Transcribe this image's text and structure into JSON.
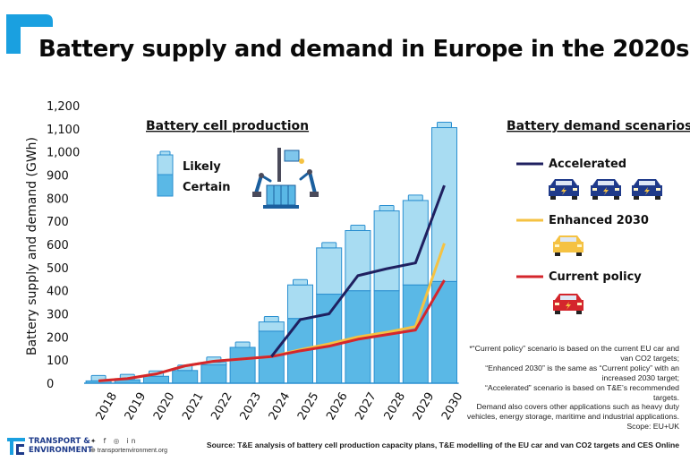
{
  "title": "Battery supply and demand in Europe in the 2020s",
  "source": "Source: T&E analysis of battery cell production capacity plans, T&E modelling of the EU car and van CO2 targets and CES Online",
  "footnote": "*“Current policy” scenario is based on the current EU car and van CO2 targets;\n“Enhanced 2030” is the same as “Current policy” with an increased 2030 target;\n“Accelerated” scenario is based on T&E’s recommended targets.\nDemand also covers other applications such as heavy duty vehicles, energy storage, maritime and industrial applications. Scope: EU+UK",
  "logo": {
    "line1": "TRANSPORT &",
    "line2": "ENVIRONMENT",
    "social": "✦ f ◎ in",
    "website": "⊕ transportenvironment.org"
  },
  "colors": {
    "likely": "#a8dcf2",
    "certain": "#5ab8e6",
    "bar_stroke": "#2a8fd0",
    "accelerated": "#1f2060",
    "enhanced": "#f5c242",
    "current": "#d4262c",
    "brand": "#1aa0e0"
  },
  "chart_data": {
    "type": "bar",
    "title": "",
    "xlabel": "",
    "ylabel": "Battery supply and demand (GWh)",
    "ylim": [
      0,
      1200
    ],
    "yticks": [
      "0",
      "100",
      "200",
      "300",
      "400",
      "500",
      "600",
      "700",
      "800",
      "900",
      "1,000",
      "1,100",
      "1,200"
    ],
    "categories": [
      "2018",
      "2019",
      "2020",
      "2021",
      "2022",
      "2023",
      "2024",
      "2025",
      "2026",
      "2027",
      "2028",
      "2029",
      "2030"
    ],
    "supply_heading": "Battery cell production",
    "demand_heading": "Battery demand scenarios*",
    "supply_series": [
      {
        "name": "Certain",
        "values": [
          10,
          15,
          30,
          55,
          80,
          155,
          225,
          280,
          385,
          400,
          400,
          425,
          440
        ]
      },
      {
        "name": "Likely",
        "values": [
          0,
          0,
          0,
          0,
          10,
          0,
          40,
          145,
          200,
          260,
          345,
          365,
          665
        ]
      }
    ],
    "demand_series": [
      {
        "name": "Accelerated",
        "values": [
          null,
          null,
          null,
          null,
          null,
          null,
          115,
          275,
          300,
          465,
          495,
          520,
          855
        ]
      },
      {
        "name": "Enhanced 2030",
        "values": [
          10,
          20,
          40,
          75,
          95,
          105,
          115,
          145,
          170,
          200,
          220,
          245,
          605
        ]
      },
      {
        "name": "Current policy",
        "values": [
          10,
          20,
          40,
          75,
          95,
          105,
          115,
          140,
          160,
          190,
          210,
          230,
          445
        ]
      }
    ]
  }
}
